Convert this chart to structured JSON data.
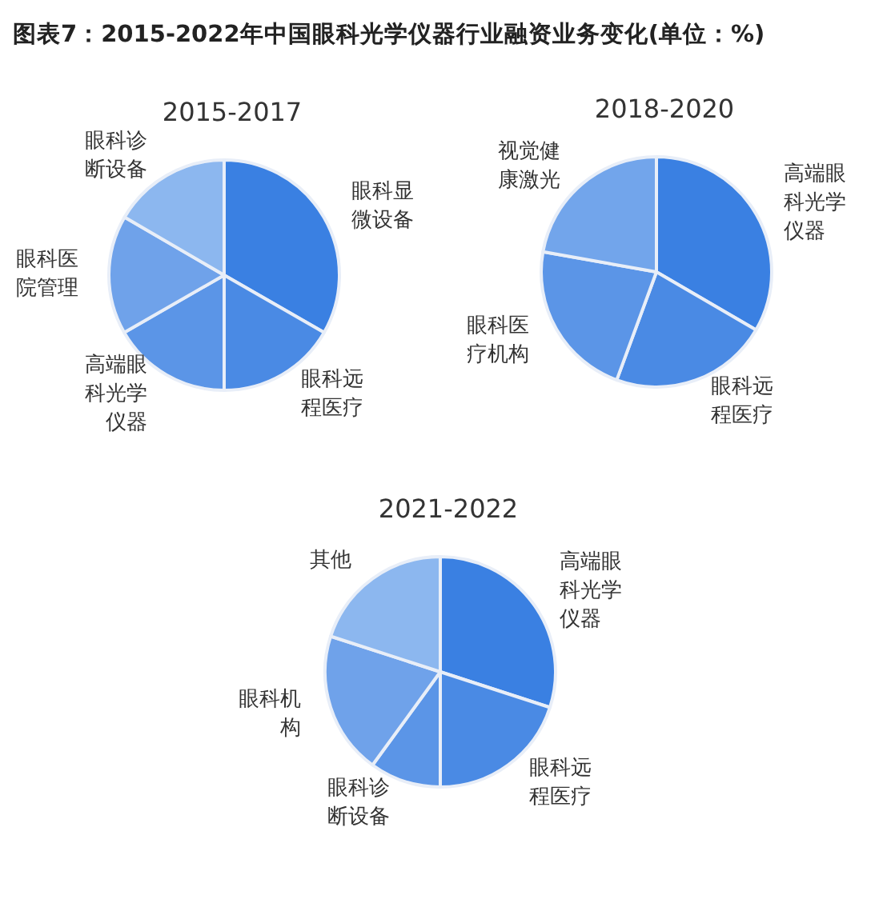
{
  "chart_data": [
    {
      "type": "pie",
      "title": "图表7：2015-2022年中国眼科光学仪器行业融资业务变化(单位：%)",
      "subtitle": "2015-2017",
      "categories": [
        "眼科显微设备",
        "眼科远程医疗",
        "高端眼科光学仪器",
        "眼科医院管理",
        "眼科诊断设备"
      ],
      "values": [
        33.3,
        16.7,
        16.7,
        16.7,
        16.6
      ],
      "colors": [
        "#3a80e2",
        "#4a8ae4",
        "#5b95e7",
        "#6fa2ea",
        "#8cb7ef"
      ]
    },
    {
      "type": "pie",
      "subtitle": "2018-2020",
      "categories": [
        "高端眼科光学仪器",
        "眼科远程医疗",
        "眼科医疗机构",
        "视觉健康激光"
      ],
      "values": [
        33.4,
        22.2,
        22.2,
        22.2
      ],
      "colors": [
        "#3a80e2",
        "#4a8ae4",
        "#5b95e7",
        "#72a5eb"
      ]
    },
    {
      "type": "pie",
      "subtitle": "2021-2022",
      "categories": [
        "高端眼科光学仪器",
        "眼科远程医疗",
        "眼科诊断设备",
        "眼科机构",
        "其他"
      ],
      "values": [
        30,
        20,
        10,
        20,
        20
      ],
      "colors": [
        "#3a80e2",
        "#4a8ae4",
        "#5b95e7",
        "#6fa2ea",
        "#8cb7ef"
      ]
    }
  ]
}
